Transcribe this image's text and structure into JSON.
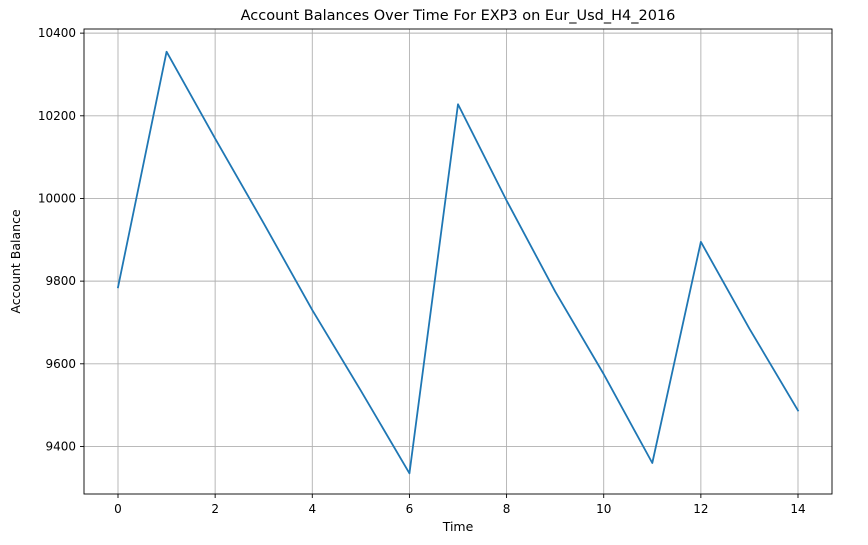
{
  "chart_data": {
    "type": "line",
    "title": "Account Balances Over Time For EXP3 on Eur_Usd_H4_2016",
    "xlabel": "Time",
    "ylabel": "Account Balance",
    "xlim": [
      -0.7,
      14.7
    ],
    "ylim": [
      9285,
      10410
    ],
    "xticks": [
      0,
      2,
      4,
      6,
      8,
      10,
      12,
      14
    ],
    "yticks": [
      9400,
      9600,
      9800,
      10000,
      10200,
      10400
    ],
    "grid": true,
    "series": [
      {
        "color": "#1f77b4",
        "x": [
          0,
          1,
          2,
          3,
          4,
          5,
          6,
          7,
          8,
          9,
          10,
          11,
          12,
          13,
          14
        ],
        "y": [
          9785,
          10355,
          10145,
          9940,
          9730,
          9535,
          9335,
          10228,
          9995,
          9775,
          9575,
          9360,
          9895,
          9685,
          9487
        ]
      }
    ]
  }
}
